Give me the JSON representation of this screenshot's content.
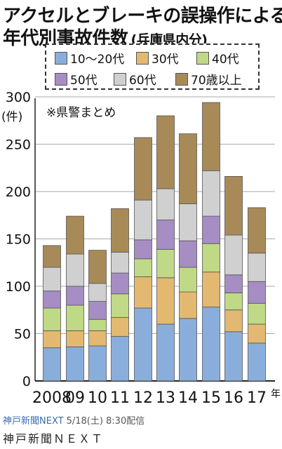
{
  "chart_data": {
    "type": "bar",
    "stacked": true,
    "title": "アクセルとブレーキの誤操作による",
    "title2": "年代別事故件数",
    "subtitle": "(兵庫県内分)",
    "note": "※県警まとめ",
    "ylabel_tick": "300",
    "yunit": "(件)",
    "xunit": "年",
    "categories": [
      "2008",
      "09",
      "10",
      "11",
      "12",
      "13",
      "14",
      "15",
      "16",
      "17"
    ],
    "ylim": [
      0,
      300
    ],
    "yticks": [
      0,
      50,
      100,
      150,
      200,
      250,
      300
    ],
    "grid": true,
    "legend_position": "top",
    "series": [
      {
        "name": "10～20代",
        "color": "#8aaedc",
        "values": [
          35,
          36,
          37,
          47,
          77,
          60,
          66,
          78,
          52,
          40
        ]
      },
      {
        "name": "30代",
        "color": "#e3b870",
        "values": [
          18,
          17,
          16,
          20,
          33,
          49,
          28,
          37,
          23,
          20
        ]
      },
      {
        "name": "40代",
        "color": "#bfd987",
        "values": [
          24,
          27,
          12,
          25,
          19,
          30,
          26,
          30,
          18,
          22
        ]
      },
      {
        "name": "50代",
        "color": "#a68dc4",
        "values": [
          18,
          20,
          19,
          22,
          20,
          31,
          28,
          29,
          19,
          23
        ]
      },
      {
        "name": "60代",
        "color": "#d0d0d0",
        "values": [
          25,
          34,
          19,
          22,
          42,
          33,
          39,
          48,
          42,
          30
        ]
      },
      {
        "name": "70歳以上",
        "color": "#a88a58",
        "values": [
          23,
          40,
          35,
          46,
          66,
          77,
          74,
          72,
          62,
          48
        ]
      }
    ]
  },
  "legend_items": [
    "10～20代",
    "30代",
    "40代",
    "50代",
    "60代",
    "70歳以上"
  ],
  "footer": {
    "source": "神戸新聞NEXT",
    "date": "5/18(土) 8:30配信",
    "name": "神戸新聞ＮＥＸＴ"
  }
}
